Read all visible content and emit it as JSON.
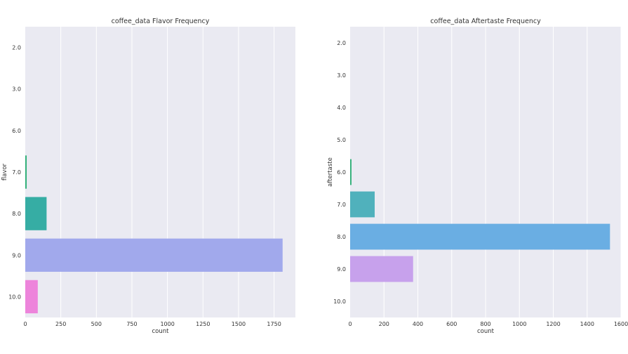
{
  "chart_data": [
    {
      "type": "bar",
      "orientation": "horizontal",
      "title": "coffee_data Flavor Frequency",
      "xlabel": "count",
      "ylabel": "flavor",
      "categories": [
        "2.0",
        "3.0",
        "6.0",
        "7.0",
        "8.0",
        "9.0",
        "10.0"
      ],
      "values": [
        0,
        0,
        0,
        10,
        150,
        1810,
        88
      ],
      "bar_colors": [
        "#f77189",
        "#dc8932",
        "#ae9d31",
        "#33b07a",
        "#36ada4",
        "#a1a9ec",
        "#ed84db"
      ],
      "xlim": [
        0,
        1900
      ],
      "xticks": [
        0,
        250,
        500,
        750,
        1000,
        1250,
        1500,
        1750
      ],
      "grid": true,
      "background": "#eaeaf2"
    },
    {
      "type": "bar",
      "orientation": "horizontal",
      "title": "coffee_data Aftertaste Frequency",
      "xlabel": "count",
      "ylabel": "aftertaste",
      "categories": [
        "2.0",
        "3.0",
        "4.0",
        "5.0",
        "6.0",
        "7.0",
        "8.0",
        "9.0",
        "10.0"
      ],
      "values": [
        0,
        0,
        0,
        0,
        8,
        145,
        1535,
        372,
        0
      ],
      "bar_colors": [
        "#f77189",
        "#dc8932",
        "#ae9d31",
        "#77ab31",
        "#33b07a",
        "#50b1bc",
        "#6aaee3",
        "#c7a1ec",
        "#f37bc9"
      ],
      "xlim": [
        0,
        1600
      ],
      "xticks": [
        0,
        200,
        400,
        600,
        800,
        1000,
        1200,
        1400,
        1600
      ],
      "grid": true,
      "background": "#eaeaf2"
    }
  ]
}
